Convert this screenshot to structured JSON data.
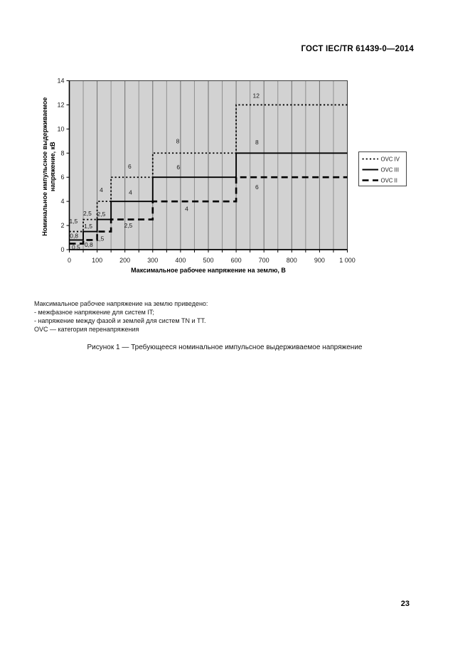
{
  "header": {
    "title": "ГОСТ IEC/TR 61439-0—2014"
  },
  "chart_data": {
    "type": "line",
    "step": true,
    "title": "",
    "xlabel": "Максимальное рабочее напряжение на землю, В",
    "ylabel": "Номинальное импульсное выдерживаемое напряжение, кВ",
    "ylabel_lines": [
      "Номинальное импульсное выдерживаемое",
      "напряжение, кВ"
    ],
    "xlim": [
      0,
      1000
    ],
    "ylim": [
      0,
      14
    ],
    "x_ticks": [
      {
        "v": 0,
        "label": "0"
      },
      {
        "v": 100,
        "label": "100"
      },
      {
        "v": 200,
        "label": "200"
      },
      {
        "v": 300,
        "label": "300"
      },
      {
        "v": 400,
        "label": "400"
      },
      {
        "v": 500,
        "label": "500"
      },
      {
        "v": 600,
        "label": "600"
      },
      {
        "v": 700,
        "label": "700"
      },
      {
        "v": 800,
        "label": "800"
      },
      {
        "v": 900,
        "label": "900"
      },
      {
        "v": 1000,
        "label": "1 000"
      }
    ],
    "y_ticks": [
      {
        "v": 0,
        "label": "0"
      },
      {
        "v": 2,
        "label": "2"
      },
      {
        "v": 4,
        "label": "4"
      },
      {
        "v": 6,
        "label": "6"
      },
      {
        "v": 8,
        "label": "8"
      },
      {
        "v": 10,
        "label": "10"
      },
      {
        "v": 12,
        "label": "12"
      },
      {
        "v": 14,
        "label": "14"
      }
    ],
    "grid": {
      "vertical_step": 50,
      "horizontal": false
    },
    "legend": {
      "position": "right-outside",
      "entries": [
        "OVC IV",
        "OVC III",
        "OVC II"
      ]
    },
    "colors": {
      "plot_background": "#d2d2d2",
      "grid_minor": "#909090",
      "grid_major": "#6e6e6e",
      "frame": "#3c3c3c",
      "line": "#000000",
      "text": "#1a1a1a"
    },
    "series": [
      {
        "id": "ovc-iv",
        "name": "OVC IV",
        "style": "dotted",
        "steps": [
          [
            0,
            1.5
          ],
          [
            50,
            2.5
          ],
          [
            100,
            4
          ],
          [
            150,
            6
          ],
          [
            300,
            8
          ],
          [
            600,
            12
          ]
        ],
        "point_labels": [
          {
            "text": "1,5",
            "x": 15,
            "y": 2.35
          },
          {
            "text": "2,5",
            "x": 65,
            "y": 3.0
          },
          {
            "text": "4",
            "x": 115,
            "y": 4.95
          },
          {
            "text": "6",
            "x": 217,
            "y": 6.9
          },
          {
            "text": "8",
            "x": 390,
            "y": 9.0
          },
          {
            "text": "12",
            "x": 672,
            "y": 12.75
          }
        ]
      },
      {
        "id": "ovc-iii",
        "name": "OVC III",
        "style": "solid",
        "steps": [
          [
            0,
            0.8
          ],
          [
            50,
            1.5
          ],
          [
            100,
            2.5
          ],
          [
            150,
            4
          ],
          [
            300,
            6
          ],
          [
            600,
            8
          ]
        ],
        "point_labels": [
          {
            "text": "0,8",
            "x": 17,
            "y": 1.15
          },
          {
            "text": "1,5",
            "x": 68,
            "y": 1.95
          },
          {
            "text": "2,5",
            "x": 115,
            "y": 2.95
          },
          {
            "text": "4",
            "x": 220,
            "y": 4.75
          },
          {
            "text": "6",
            "x": 392,
            "y": 6.85
          },
          {
            "text": "8",
            "x": 675,
            "y": 8.9
          }
        ]
      },
      {
        "id": "ovc-ii",
        "name": "OVC II",
        "style": "dashed",
        "steps": [
          [
            0,
            0.5
          ],
          [
            50,
            0.8
          ],
          [
            100,
            1.5
          ],
          [
            150,
            2.5
          ],
          [
            300,
            4
          ],
          [
            600,
            6
          ]
        ],
        "point_labels": [
          {
            "text": "0,5",
            "x": 24,
            "y": 0.22
          },
          {
            "text": "0,8",
            "x": 70,
            "y": 0.4
          },
          {
            "text": "1,5",
            "x": 110,
            "y": 0.9
          },
          {
            "text": "2,5",
            "x": 212,
            "y": 2.0
          },
          {
            "text": "4",
            "x": 422,
            "y": 3.4
          },
          {
            "text": "6",
            "x": 675,
            "y": 5.2
          }
        ]
      }
    ]
  },
  "notes": [
    "Максимальное рабочее напряжение на землю приведено:",
    "- межфазное напряжение для систем IT;",
    "- напряжение между фазой и землей для систем TN и TT.",
    "OVC — категория перенапряжения"
  ],
  "caption": "Рисунок 1 — Требующееся номинальное импульсное выдерживаемое напряжение",
  "page_number": "23"
}
